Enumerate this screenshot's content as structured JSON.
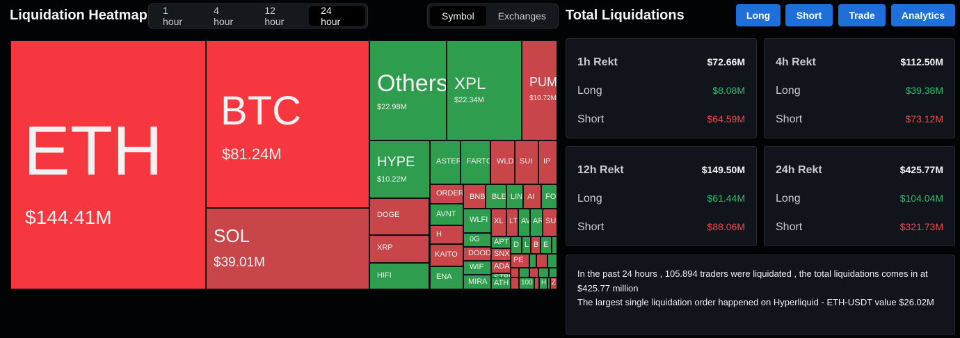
{
  "heatmap": {
    "title": "Liquidation Heatmap",
    "time_options": [
      "1 hour",
      "4 hour",
      "12 hour",
      "24 hour"
    ],
    "time_selected": "24 hour",
    "group_options": [
      "Symbol",
      "Exchanges"
    ],
    "group_selected": "Symbol",
    "cells": [
      {
        "s": "ETH",
        "v": "$144.41M",
        "c": "red"
      },
      {
        "s": "BTC",
        "v": "$81.24M",
        "c": "red"
      },
      {
        "s": "SOL",
        "v": "$39.01M",
        "c": "dred"
      },
      {
        "s": "Others",
        "v": "$22.98M",
        "c": "green"
      },
      {
        "s": "XPL",
        "v": "$22.34M",
        "c": "green"
      },
      {
        "s": "PUMP",
        "v": "$10.72M",
        "c": "dred"
      },
      {
        "s": "HYPE",
        "v": "$10.22M",
        "c": "green"
      },
      {
        "s": "ASTER",
        "v": "",
        "c": "green"
      },
      {
        "s": "FARTCOIN",
        "v": "",
        "c": "green"
      },
      {
        "s": "WLD",
        "v": "",
        "c": "dred"
      },
      {
        "s": "SUI",
        "v": "",
        "c": "dred"
      },
      {
        "s": "IP",
        "v": "",
        "c": "dred"
      },
      {
        "s": "DOGE",
        "v": "",
        "c": "dred"
      },
      {
        "s": "XRP",
        "v": "",
        "c": "dred"
      },
      {
        "s": "HIFI",
        "v": "",
        "c": "green"
      },
      {
        "s": "ORDER",
        "v": "",
        "c": "dred"
      },
      {
        "s": "AVNT",
        "v": "",
        "c": "green"
      },
      {
        "s": "H",
        "v": "",
        "c": "dred"
      },
      {
        "s": "KAITO",
        "v": "",
        "c": "dred"
      },
      {
        "s": "ENA",
        "v": "",
        "c": "green"
      },
      {
        "s": "BNB",
        "v": "",
        "c": "dred"
      },
      {
        "s": "BLESS",
        "v": "",
        "c": "green"
      },
      {
        "s": "LINK",
        "v": "",
        "c": "green"
      },
      {
        "s": "AI",
        "v": "",
        "c": "dred"
      },
      {
        "s": "FORM",
        "v": "",
        "c": "green"
      },
      {
        "s": "WLFI",
        "v": "",
        "c": "green"
      },
      {
        "s": "0G",
        "v": "",
        "c": "green"
      },
      {
        "s": "DOOD",
        "v": "",
        "c": "dred"
      },
      {
        "s": "WIF",
        "v": "",
        "c": "green"
      },
      {
        "s": "MIRA",
        "v": "",
        "c": "green"
      },
      {
        "s": "XL",
        "v": "",
        "c": "dred"
      },
      {
        "s": "LTC",
        "v": "",
        "c": "dred"
      },
      {
        "s": "AVAX",
        "v": "",
        "c": "green"
      },
      {
        "s": "AR",
        "v": "",
        "c": "green"
      },
      {
        "s": "SUN",
        "v": "",
        "c": "dred"
      },
      {
        "s": "APT",
        "v": "",
        "c": "green"
      },
      {
        "s": "SNX",
        "v": "",
        "c": "dred"
      },
      {
        "s": "ADA",
        "v": "",
        "c": "dred"
      },
      {
        "s": "STBL",
        "v": "",
        "c": "green"
      },
      {
        "s": "ATH",
        "v": "",
        "c": "green"
      },
      {
        "s": "D",
        "v": "",
        "c": "green"
      },
      {
        "s": "L",
        "v": "",
        "c": "green"
      },
      {
        "s": "B",
        "v": "",
        "c": "dred"
      },
      {
        "s": "E",
        "v": "",
        "c": "green"
      },
      {
        "s": "PE",
        "v": "",
        "c": "dred"
      },
      {
        "s": "",
        "v": "",
        "c": "green"
      },
      {
        "s": "",
        "v": "",
        "c": "dred"
      },
      {
        "s": "",
        "v": "",
        "c": "green"
      },
      {
        "s": "",
        "v": "",
        "c": "dred"
      },
      {
        "s": "",
        "v": "",
        "c": "green"
      },
      {
        "s": "",
        "v": "",
        "c": "dred"
      },
      {
        "s": "",
        "v": "",
        "c": "green"
      },
      {
        "s": "",
        "v": "",
        "c": "green"
      },
      {
        "s": "",
        "v": "",
        "c": "dred"
      },
      {
        "s": "",
        "v": "",
        "c": "green"
      },
      {
        "s": "100",
        "v": "",
        "c": "green"
      },
      {
        "s": "",
        "v": "",
        "c": "dred"
      },
      {
        "s": "H",
        "v": "",
        "c": "green"
      },
      {
        "s": "",
        "v": "",
        "c": "green"
      },
      {
        "s": "Z",
        "v": "",
        "c": "dred"
      },
      {
        "s": "",
        "v": "",
        "c": "green"
      }
    ]
  },
  "totals": {
    "title": "Total Liquidations",
    "buttons": [
      "Long",
      "Short",
      "Trade",
      "Analytics"
    ],
    "cards": [
      {
        "period": "1h Rekt",
        "total": "$72.66M",
        "long_label": "Long",
        "long": "$8.08M",
        "short_label": "Short",
        "short": "$64.59M"
      },
      {
        "period": "4h Rekt",
        "total": "$112.50M",
        "long_label": "Long",
        "long": "$39.38M",
        "short_label": "Short",
        "short": "$73.12M"
      },
      {
        "period": "12h Rekt",
        "total": "$149.50M",
        "long_label": "Long",
        "long": "$61.44M",
        "short_label": "Short",
        "short": "$88.06M"
      },
      {
        "period": "24h Rekt",
        "total": "$425.77M",
        "long_label": "Long",
        "long": "$104.04M",
        "short_label": "Short",
        "short": "$321.73M"
      }
    ],
    "summary_line1": "In the past 24 hours , 105.894 traders were liquidated , the total liquidations comes in at $425.77 million",
    "summary_line2": "The largest single liquidation order happened on Hyperliquid - ETH-USDT value $26.02M"
  },
  "colors": {
    "red": "#f6373f",
    "dred": "#c8454a",
    "green": "#2e9e4e",
    "accent": "#1e6fd9",
    "long": "#2fbf71",
    "short": "#ef4a4a"
  }
}
